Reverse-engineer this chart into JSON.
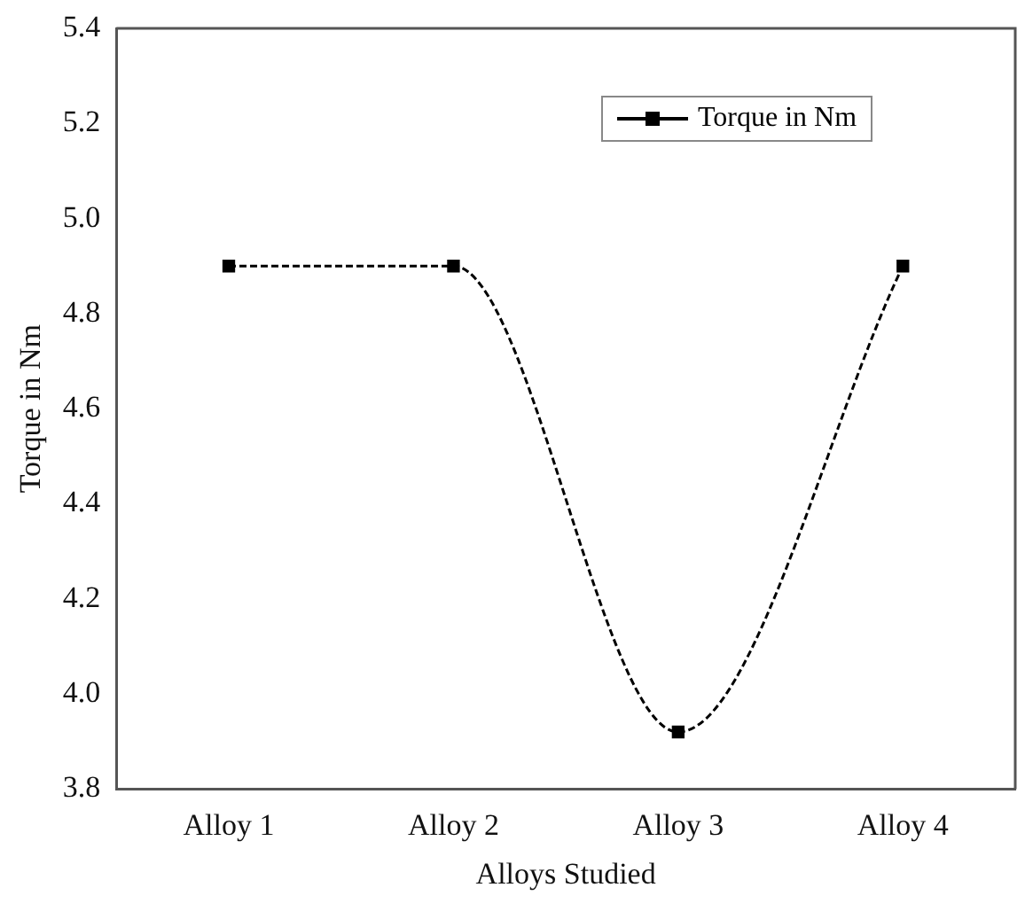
{
  "chart_data": {
    "type": "line",
    "xlabel": "Alloys Studied",
    "ylabel": "Torque in Nm",
    "categories": [
      "Alloy 1",
      "Alloy 2",
      "Alloy 3",
      "Alloy 4"
    ],
    "series": [
      {
        "name": "Torque in Nm",
        "color": "#000000",
        "values": [
          4.9,
          4.9,
          3.92,
          4.9
        ]
      }
    ],
    "ylim": [
      3.8,
      5.4
    ],
    "yticks": [
      3.8,
      {
        "value": 4,
        "label": "4.0"
      },
      4.2,
      4.4,
      4.6,
      4.8,
      {
        "value": 5,
        "label": "5.0"
      },
      5.2,
      5.4
    ],
    "grid": false,
    "legend": "top right",
    "marker": "square",
    "line_style": "dashed"
  }
}
